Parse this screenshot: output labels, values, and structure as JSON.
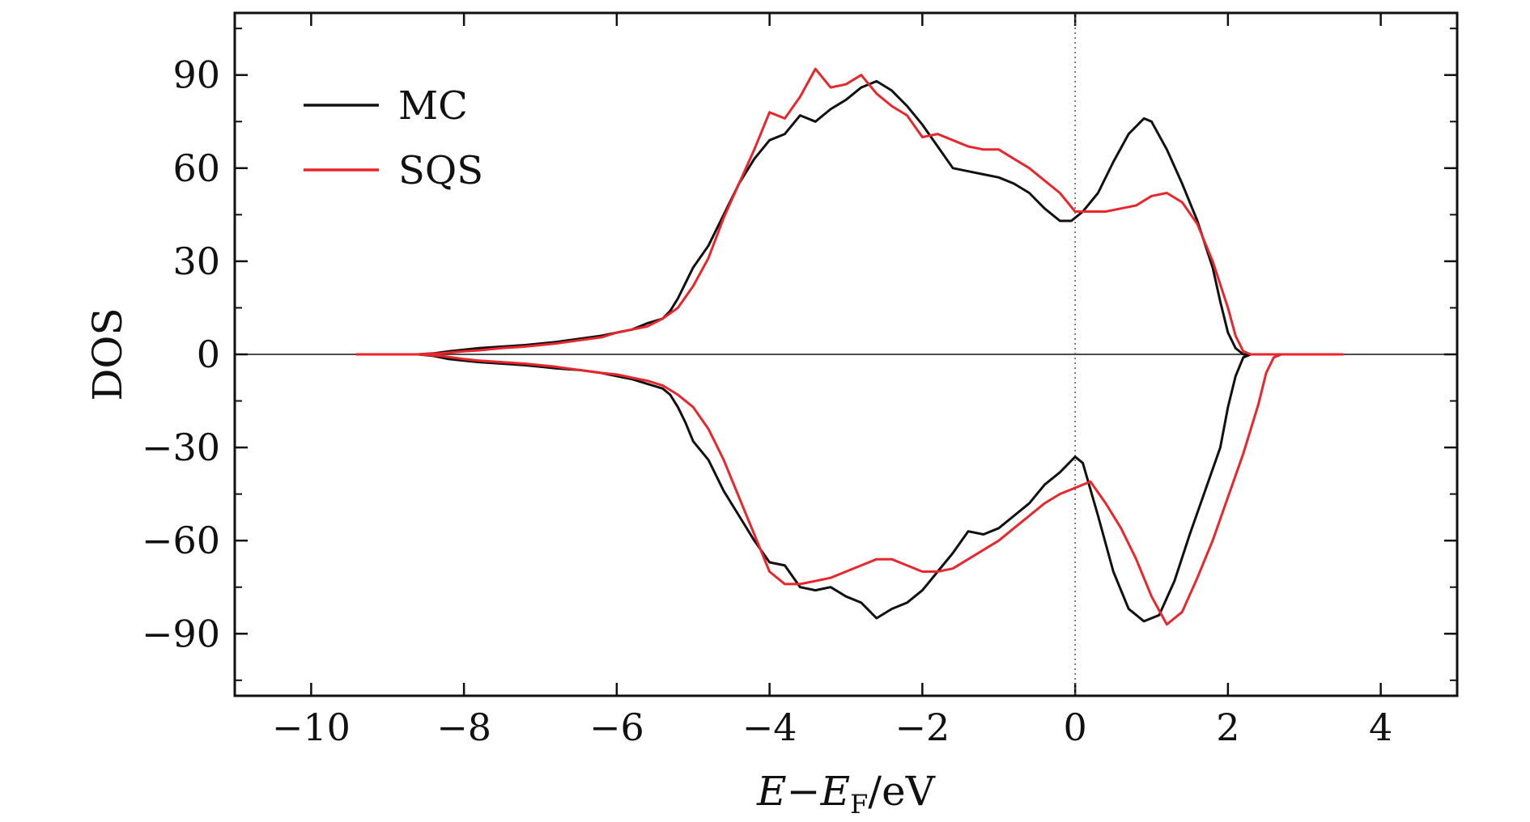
{
  "chart_data": {
    "type": "line",
    "xlabel": {
      "main": "E",
      "minus": "−",
      "sym": "E",
      "sub": "F",
      "unit": "/eV"
    },
    "ylabel": "DOS",
    "xlim": [
      -11,
      5
    ],
    "ylim": [
      -110,
      110
    ],
    "x_ticks": [
      -10,
      -8,
      -6,
      -4,
      -2,
      0,
      2,
      4
    ],
    "x_tick_labels": [
      "−10",
      "−8",
      "−6",
      "−4",
      "−2",
      "0",
      "2",
      "4"
    ],
    "y_ticks": [
      90,
      60,
      30,
      0,
      -30,
      -60,
      -90
    ],
    "y_tick_labels": [
      "90",
      "60",
      "30",
      "0",
      "−30",
      "−60",
      "−90"
    ],
    "fermi_level_x": 0,
    "zero_line_y": 0,
    "grid": false,
    "legend_position": "top-left",
    "series": [
      {
        "name": "MC",
        "color": "#111111",
        "up": [
          [
            -9.4,
            0
          ],
          [
            -8.6,
            0
          ],
          [
            -8.4,
            0.3
          ],
          [
            -8.2,
            1
          ],
          [
            -8,
            1.5
          ],
          [
            -7.8,
            2
          ],
          [
            -7.5,
            2.5
          ],
          [
            -7.2,
            3
          ],
          [
            -7,
            3.5
          ],
          [
            -6.8,
            4
          ],
          [
            -6.5,
            5
          ],
          [
            -6.2,
            6
          ],
          [
            -6,
            7
          ],
          [
            -5.8,
            8
          ],
          [
            -5.6,
            10
          ],
          [
            -5.4,
            11.5
          ],
          [
            -5.3,
            14
          ],
          [
            -5.2,
            18
          ],
          [
            -5.1,
            23
          ],
          [
            -5,
            28
          ],
          [
            -4.8,
            35
          ],
          [
            -4.6,
            45
          ],
          [
            -4.4,
            55
          ],
          [
            -4.2,
            63
          ],
          [
            -4,
            69
          ],
          [
            -3.8,
            71
          ],
          [
            -3.6,
            77
          ],
          [
            -3.4,
            75
          ],
          [
            -3.2,
            79
          ],
          [
            -3,
            82
          ],
          [
            -2.8,
            86
          ],
          [
            -2.6,
            88
          ],
          [
            -2.4,
            85
          ],
          [
            -2.2,
            80
          ],
          [
            -2,
            74
          ],
          [
            -1.8,
            67
          ],
          [
            -1.6,
            60
          ],
          [
            -1.4,
            59
          ],
          [
            -1.2,
            58
          ],
          [
            -1,
            57
          ],
          [
            -0.8,
            55
          ],
          [
            -0.6,
            52
          ],
          [
            -0.4,
            47
          ],
          [
            -0.2,
            43
          ],
          [
            -0.05,
            43
          ],
          [
            0.1,
            46
          ],
          [
            0.3,
            52
          ],
          [
            0.5,
            62
          ],
          [
            0.7,
            71
          ],
          [
            0.9,
            76
          ],
          [
            1,
            75
          ],
          [
            1.2,
            66
          ],
          [
            1.4,
            55
          ],
          [
            1.6,
            43
          ],
          [
            1.8,
            28
          ],
          [
            1.9,
            17
          ],
          [
            2,
            7
          ],
          [
            2.1,
            2
          ],
          [
            2.2,
            0
          ],
          [
            3.5,
            0
          ]
        ],
        "down": [
          [
            -9.4,
            0
          ],
          [
            -8.6,
            0
          ],
          [
            -8.4,
            -0.5
          ],
          [
            -8.2,
            -1.5
          ],
          [
            -8,
            -2
          ],
          [
            -7.8,
            -2.5
          ],
          [
            -7.5,
            -3
          ],
          [
            -7.2,
            -3.5
          ],
          [
            -7,
            -4
          ],
          [
            -6.8,
            -4.5
          ],
          [
            -6.5,
            -5
          ],
          [
            -6.2,
            -6
          ],
          [
            -6,
            -7
          ],
          [
            -5.8,
            -8
          ],
          [
            -5.6,
            -9.5
          ],
          [
            -5.4,
            -11
          ],
          [
            -5.3,
            -13
          ],
          [
            -5.2,
            -17
          ],
          [
            -5.1,
            -22
          ],
          [
            -5,
            -28
          ],
          [
            -4.8,
            -34
          ],
          [
            -4.6,
            -44
          ],
          [
            -4.4,
            -52
          ],
          [
            -4.2,
            -60
          ],
          [
            -4,
            -67
          ],
          [
            -3.8,
            -68
          ],
          [
            -3.6,
            -75
          ],
          [
            -3.4,
            -76
          ],
          [
            -3.2,
            -75
          ],
          [
            -3,
            -78
          ],
          [
            -2.8,
            -80
          ],
          [
            -2.6,
            -85
          ],
          [
            -2.4,
            -82
          ],
          [
            -2.2,
            -80
          ],
          [
            -2,
            -76
          ],
          [
            -1.8,
            -70
          ],
          [
            -1.6,
            -64
          ],
          [
            -1.4,
            -57
          ],
          [
            -1.2,
            -58
          ],
          [
            -1,
            -56
          ],
          [
            -0.8,
            -52
          ],
          [
            -0.6,
            -48
          ],
          [
            -0.4,
            -42
          ],
          [
            -0.2,
            -38
          ],
          [
            0,
            -33
          ],
          [
            0.1,
            -35
          ],
          [
            0.3,
            -52
          ],
          [
            0.5,
            -70
          ],
          [
            0.7,
            -82
          ],
          [
            0.9,
            -86
          ],
          [
            1.1,
            -84
          ],
          [
            1.3,
            -73
          ],
          [
            1.5,
            -58
          ],
          [
            1.7,
            -44
          ],
          [
            1.9,
            -30
          ],
          [
            2,
            -17
          ],
          [
            2.1,
            -7
          ],
          [
            2.2,
            -1
          ],
          [
            2.3,
            0
          ],
          [
            3.5,
            0
          ]
        ]
      },
      {
        "name": "SQS",
        "color": "#e8262c",
        "up": [
          [
            -9.4,
            0
          ],
          [
            -8.6,
            0
          ],
          [
            -8.3,
            0.3
          ],
          [
            -8,
            1
          ],
          [
            -7.8,
            1.3
          ],
          [
            -7.5,
            2
          ],
          [
            -7.2,
            2.5
          ],
          [
            -7,
            3
          ],
          [
            -6.8,
            3.5
          ],
          [
            -6.5,
            4.5
          ],
          [
            -6.2,
            5.5
          ],
          [
            -6,
            7
          ],
          [
            -5.8,
            8
          ],
          [
            -5.6,
            9
          ],
          [
            -5.4,
            11.5
          ],
          [
            -5.2,
            15
          ],
          [
            -5,
            22
          ],
          [
            -4.8,
            31
          ],
          [
            -4.6,
            44
          ],
          [
            -4.4,
            55
          ],
          [
            -4.2,
            66
          ],
          [
            -4,
            78
          ],
          [
            -3.8,
            76
          ],
          [
            -3.6,
            83
          ],
          [
            -3.4,
            92
          ],
          [
            -3.2,
            86
          ],
          [
            -3,
            87
          ],
          [
            -2.8,
            90
          ],
          [
            -2.6,
            84
          ],
          [
            -2.4,
            80
          ],
          [
            -2.2,
            77
          ],
          [
            -2,
            70
          ],
          [
            -1.8,
            71
          ],
          [
            -1.6,
            69
          ],
          [
            -1.4,
            67
          ],
          [
            -1.2,
            66
          ],
          [
            -1,
            66
          ],
          [
            -0.8,
            63
          ],
          [
            -0.6,
            60
          ],
          [
            -0.4,
            56
          ],
          [
            -0.2,
            52
          ],
          [
            0,
            46
          ],
          [
            0.2,
            46
          ],
          [
            0.4,
            46
          ],
          [
            0.6,
            47
          ],
          [
            0.8,
            48
          ],
          [
            1,
            51
          ],
          [
            1.2,
            52
          ],
          [
            1.4,
            49
          ],
          [
            1.6,
            42
          ],
          [
            1.8,
            30
          ],
          [
            2,
            15
          ],
          [
            2.1,
            6
          ],
          [
            2.2,
            1
          ],
          [
            2.3,
            0
          ],
          [
            3.5,
            0
          ]
        ],
        "down": [
          [
            -9.4,
            0
          ],
          [
            -8.6,
            0
          ],
          [
            -8.3,
            -0.5
          ],
          [
            -8,
            -1.5
          ],
          [
            -7.8,
            -2
          ],
          [
            -7.5,
            -2.5
          ],
          [
            -7.2,
            -3
          ],
          [
            -7,
            -3.5
          ],
          [
            -6.8,
            -4
          ],
          [
            -6.5,
            -5
          ],
          [
            -6.2,
            -6
          ],
          [
            -6,
            -6.5
          ],
          [
            -5.8,
            -7.5
          ],
          [
            -5.6,
            -8.5
          ],
          [
            -5.4,
            -10
          ],
          [
            -5.2,
            -13
          ],
          [
            -5,
            -17
          ],
          [
            -4.8,
            -24
          ],
          [
            -4.6,
            -34
          ],
          [
            -4.4,
            -46
          ],
          [
            -4.2,
            -58
          ],
          [
            -4,
            -70
          ],
          [
            -3.8,
            -74
          ],
          [
            -3.6,
            -74
          ],
          [
            -3.4,
            -73
          ],
          [
            -3.2,
            -72
          ],
          [
            -3,
            -70
          ],
          [
            -2.8,
            -68
          ],
          [
            -2.6,
            -66
          ],
          [
            -2.4,
            -66
          ],
          [
            -2.2,
            -68
          ],
          [
            -2,
            -70
          ],
          [
            -1.8,
            -70
          ],
          [
            -1.6,
            -69
          ],
          [
            -1.4,
            -66
          ],
          [
            -1.2,
            -63
          ],
          [
            -1,
            -60
          ],
          [
            -0.8,
            -56
          ],
          [
            -0.6,
            -52
          ],
          [
            -0.4,
            -48
          ],
          [
            -0.2,
            -45
          ],
          [
            0,
            -43
          ],
          [
            0.2,
            -41
          ],
          [
            0.4,
            -48
          ],
          [
            0.6,
            -56
          ],
          [
            0.8,
            -66
          ],
          [
            1,
            -78
          ],
          [
            1.2,
            -87
          ],
          [
            1.4,
            -83
          ],
          [
            1.6,
            -72
          ],
          [
            1.8,
            -60
          ],
          [
            2,
            -46
          ],
          [
            2.2,
            -32
          ],
          [
            2.4,
            -16
          ],
          [
            2.5,
            -6
          ],
          [
            2.6,
            -1
          ],
          [
            2.7,
            0
          ],
          [
            3.5,
            0
          ]
        ]
      }
    ]
  }
}
